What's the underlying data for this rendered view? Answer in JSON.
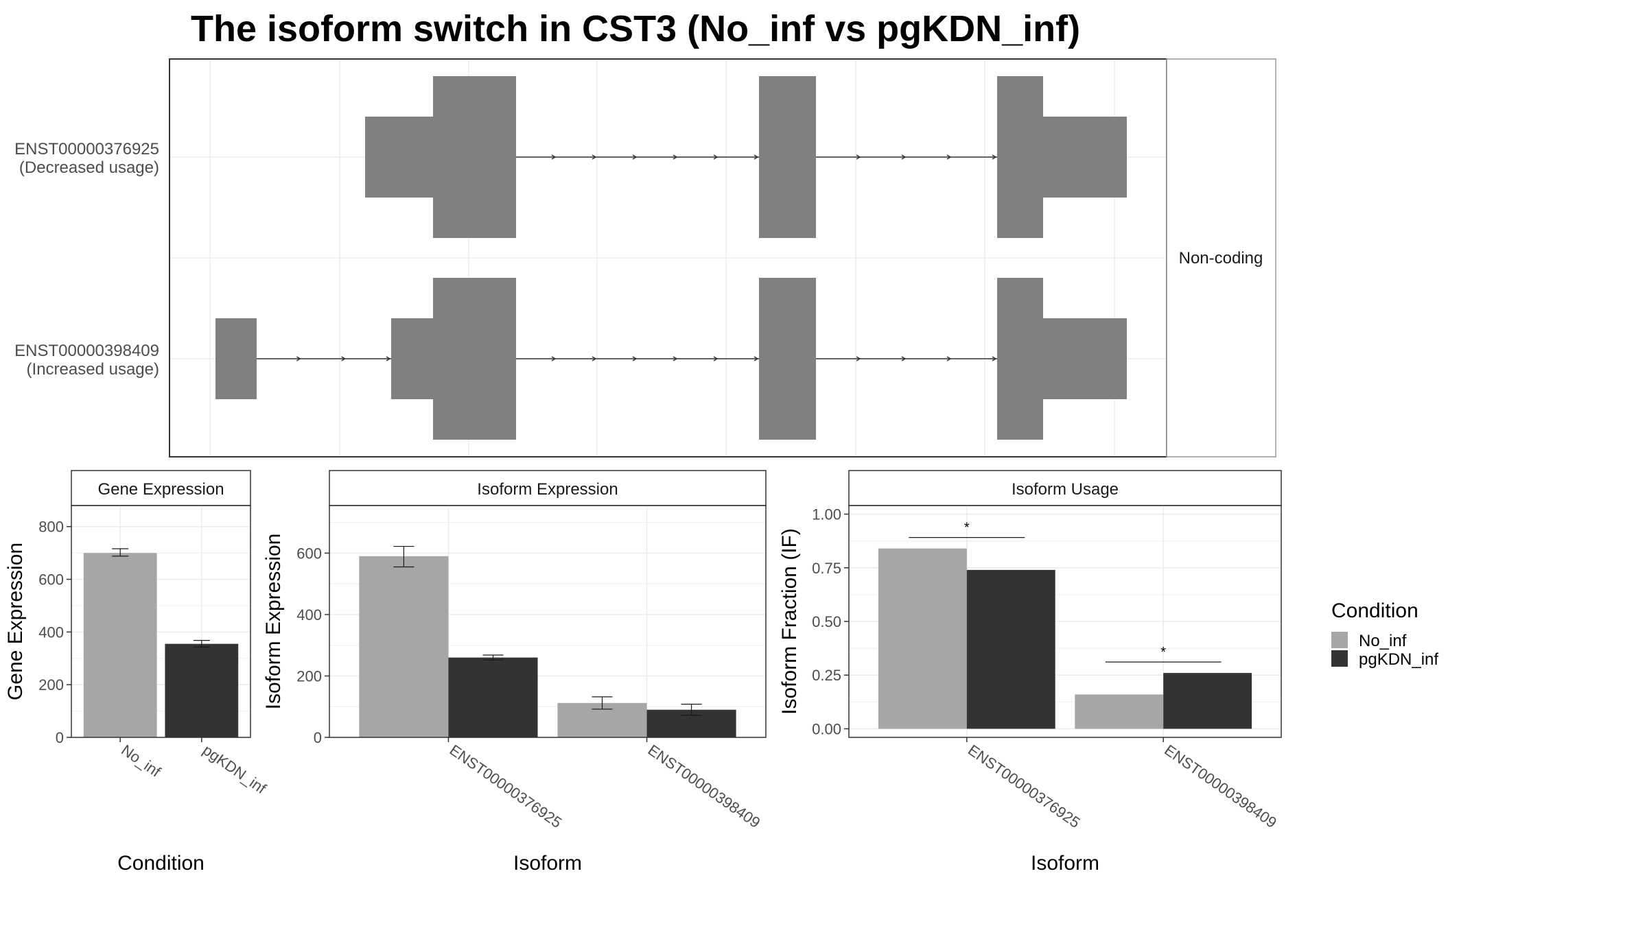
{
  "title": "The isoform switch in CST3 (No_inf vs pgKDN_inf)",
  "colors": {
    "no_inf": "#a6a6a6",
    "pgkdn_inf": "#333333",
    "exon": "#808080"
  },
  "legend": {
    "title": "Condition",
    "items": [
      {
        "label": "No_inf",
        "color": "#a6a6a6"
      },
      {
        "label": "pgKDN_inf",
        "color": "#333333"
      }
    ]
  },
  "chart_data": [
    {
      "type": "gene_structure",
      "facet_label": "Non-coding",
      "isoforms": [
        {
          "id": "ENST00000376925",
          "note": "(Decreased usage)"
        },
        {
          "id": "ENST00000398409",
          "note": "(Increased usage)"
        }
      ]
    },
    {
      "type": "bar",
      "title": "Gene Expression",
      "xlabel": "Condition",
      "ylabel": "Gene Expression",
      "categories": [
        "No_inf",
        "pgKDN_inf"
      ],
      "values": [
        700,
        355
      ],
      "errors": [
        [
          688,
          716
        ],
        [
          343,
          368
        ]
      ],
      "ylim": [
        0,
        880
      ],
      "yticks": [
        0,
        200,
        400,
        600,
        800
      ]
    },
    {
      "type": "bar",
      "title": "Isoform Expression",
      "xlabel": "Isoform",
      "ylabel": "Isoform Expression",
      "categories": [
        "ENST00000376925",
        "ENST00000398409"
      ],
      "series": [
        {
          "name": "No_inf",
          "values": [
            590,
            112
          ],
          "errors": [
            [
              555,
              622
            ],
            [
              92,
              132
            ]
          ]
        },
        {
          "name": "pgKDN_inf",
          "values": [
            260,
            90
          ],
          "errors": [
            [
              252,
              268
            ],
            [
              72,
              108
            ]
          ]
        }
      ],
      "ylim": [
        0,
        755
      ],
      "yticks": [
        0,
        200,
        400,
        600
      ]
    },
    {
      "type": "bar",
      "title": "Isoform Usage",
      "xlabel": "Isoform",
      "ylabel": "Isoform Fraction (IF)",
      "categories": [
        "ENST00000376925",
        "ENST00000398409"
      ],
      "series": [
        {
          "name": "No_inf",
          "values": [
            0.84,
            0.16
          ]
        },
        {
          "name": "pgKDN_inf",
          "values": [
            0.74,
            0.26
          ]
        }
      ],
      "significance": [
        "*",
        "*"
      ],
      "ylim": [
        -0.04,
        1.04
      ],
      "yticks": [
        "0.00",
        "0.25",
        "0.50",
        "0.75",
        "1.00"
      ]
    }
  ]
}
